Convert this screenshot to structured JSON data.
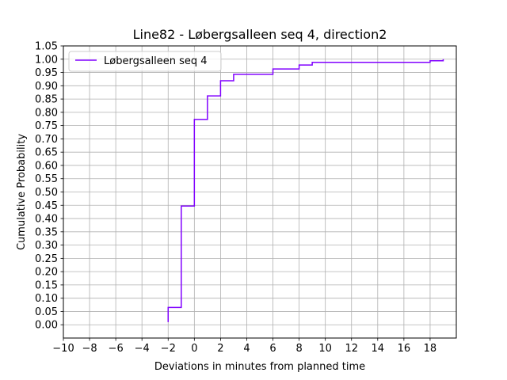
{
  "chart_data": {
    "type": "line",
    "title": "Line82 - Løbergsalleen seq 4, direction2",
    "xlabel": "Deviations in minutes from planned time",
    "ylabel": "Cumulative Probability",
    "xlim": [
      -10,
      20
    ],
    "ylim": [
      -0.05,
      1.05
    ],
    "xticks": [
      -10,
      -8,
      -6,
      -4,
      -2,
      0,
      2,
      4,
      6,
      8,
      10,
      12,
      14,
      16,
      18
    ],
    "xtick_labels": [
      "−10",
      "−8",
      "−6",
      "−4",
      "−2",
      "0",
      "2",
      "4",
      "6",
      "8",
      "10",
      "12",
      "14",
      "16",
      "18"
    ],
    "yticks": [
      0.0,
      0.05,
      0.1,
      0.15,
      0.2,
      0.25,
      0.3,
      0.35,
      0.4,
      0.45,
      0.5,
      0.55,
      0.6,
      0.65,
      0.7,
      0.75,
      0.8,
      0.85,
      0.9,
      0.95,
      1.0,
      1.05
    ],
    "ytick_labels": [
      "0.00",
      "0.05",
      "0.10",
      "0.15",
      "0.20",
      "0.25",
      "0.30",
      "0.35",
      "0.40",
      "0.45",
      "0.50",
      "0.55",
      "0.60",
      "0.65",
      "0.70",
      "0.75",
      "0.80",
      "0.85",
      "0.90",
      "0.95",
      "1.00",
      "1.05"
    ],
    "grid": true,
    "legend_position": "top-left",
    "series": [
      {
        "name": "Løbergsalleen seq 4",
        "color": "#8000ff",
        "step": "post",
        "x": [
          -2,
          -2,
          -1,
          0,
          1,
          2,
          3,
          6,
          8,
          9,
          18,
          19
        ],
        "y": [
          0.01,
          0.065,
          0.447,
          0.773,
          0.862,
          0.919,
          0.943,
          0.963,
          0.978,
          0.988,
          0.994,
          1.0
        ]
      }
    ]
  }
}
